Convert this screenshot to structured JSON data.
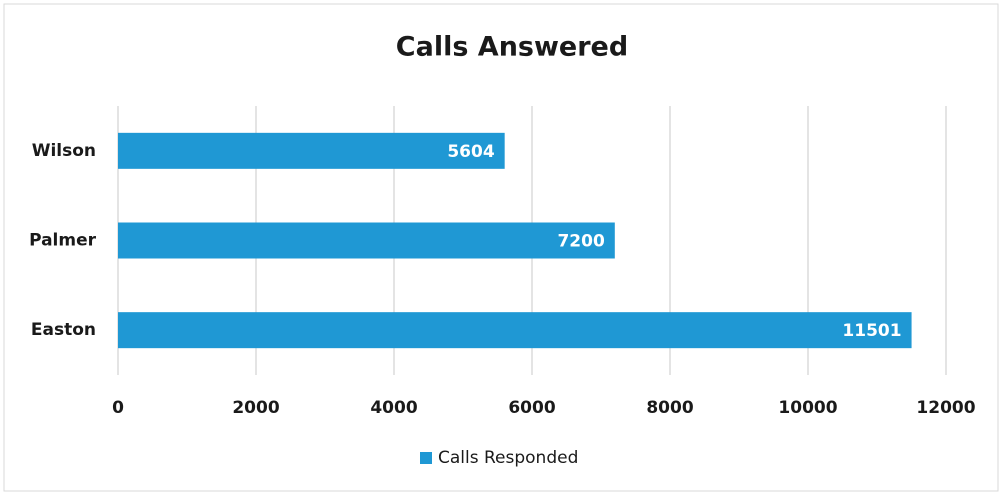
{
  "chart_data": {
    "type": "bar",
    "orientation": "horizontal",
    "title": "Calls Answered",
    "categories": [
      "Wilson",
      "Palmer",
      "Easton"
    ],
    "series": [
      {
        "name": "Calls Responded",
        "color": "#1f98d4",
        "values": [
          5604,
          7200,
          11501
        ]
      }
    ],
    "xlim": [
      0,
      12000
    ],
    "xticks": [
      0,
      2000,
      4000,
      6000,
      8000,
      10000,
      12000
    ],
    "grid": true,
    "legend": "bottom"
  }
}
